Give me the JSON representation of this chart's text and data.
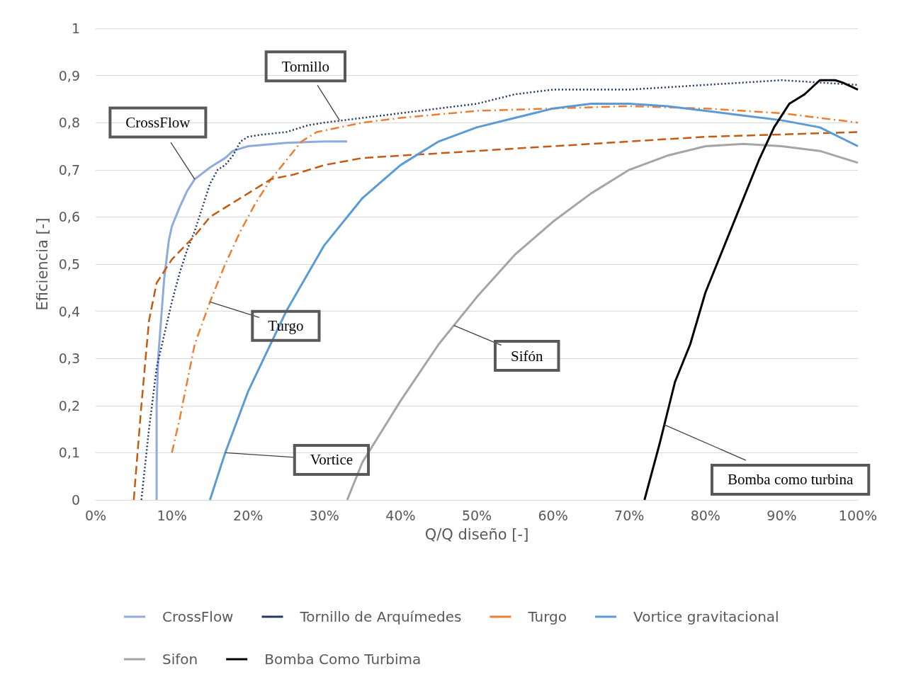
{
  "chart_data": {
    "type": "line",
    "xlabel": "Q/Q diseño [-]",
    "ylabel": "Eficiencia [-]",
    "xlim": [
      0,
      100
    ],
    "xticks": [
      {
        "value": 0,
        "label": "0%"
      },
      {
        "value": 10,
        "label": "10%"
      },
      {
        "value": 20,
        "label": "20%"
      },
      {
        "value": 30,
        "label": "30%"
      },
      {
        "value": 40,
        "label": "40%"
      },
      {
        "value": 50,
        "label": "50%"
      },
      {
        "value": 60,
        "label": "60%"
      },
      {
        "value": 70,
        "label": "70%"
      },
      {
        "value": 80,
        "label": "80%"
      },
      {
        "value": 90,
        "label": "90%"
      },
      {
        "value": 100,
        "label": "100%"
      }
    ],
    "ylim": [
      0,
      1
    ],
    "yticks": [
      0,
      {
        "value": 0.1,
        "label": "0,1"
      },
      {
        "value": 0.2,
        "label": "0,2"
      },
      {
        "value": 0.3,
        "label": "0,3"
      },
      {
        "value": 0.4,
        "label": "0,4"
      },
      {
        "value": 0.5,
        "label": "0,5"
      },
      {
        "value": 0.6,
        "label": "0,6"
      },
      {
        "value": 0.7,
        "label": "0,7"
      },
      {
        "value": 0.8,
        "label": "0,8"
      },
      {
        "value": 0.9,
        "label": "0,9"
      },
      1
    ],
    "grid": "y",
    "legend": "bottom",
    "marker": "none",
    "series": [
      {
        "name": "CrossFlow",
        "color": "#8faadc",
        "line_style": "solid",
        "x": [
          8,
          8,
          8.2,
          9,
          9.6,
          10,
          11,
          12,
          13,
          15,
          17,
          18,
          20,
          25,
          30,
          33
        ],
        "values": [
          0,
          0.2,
          0.3,
          0.47,
          0.55,
          0.58,
          0.62,
          0.655,
          0.68,
          0.705,
          0.725,
          0.74,
          0.75,
          0.757,
          0.76,
          0.76
        ]
      },
      {
        "name": "Tornillo de Arquímedes",
        "color": "#203864",
        "line_style": "dotted",
        "x": [
          6,
          7,
          8,
          9,
          10,
          11,
          12,
          13,
          14,
          15,
          16,
          17,
          18,
          19,
          20,
          22,
          25,
          28,
          30,
          35,
          40,
          45,
          50,
          55,
          60,
          65,
          70,
          75,
          80,
          85,
          90,
          95,
          100
        ],
        "values": [
          0,
          0.15,
          0.28,
          0.35,
          0.42,
          0.48,
          0.53,
          0.57,
          0.62,
          0.67,
          0.7,
          0.71,
          0.73,
          0.76,
          0.77,
          0.775,
          0.78,
          0.795,
          0.8,
          0.81,
          0.82,
          0.83,
          0.84,
          0.86,
          0.87,
          0.87,
          0.87,
          0.875,
          0.88,
          0.885,
          0.89,
          0.885,
          0.88
        ]
      },
      {
        "name": "Turgo",
        "color": "#ed7d31",
        "line_style": "dashdot",
        "x": [
          10,
          11,
          12,
          13,
          15,
          17,
          19,
          21,
          23,
          25,
          27,
          29,
          32,
          35,
          40,
          50,
          60,
          70,
          80,
          90,
          100
        ],
        "values": [
          0.1,
          0.17,
          0.25,
          0.33,
          0.42,
          0.5,
          0.57,
          0.63,
          0.68,
          0.72,
          0.76,
          0.78,
          0.79,
          0.8,
          0.81,
          0.825,
          0.83,
          0.835,
          0.83,
          0.82,
          0.8
        ]
      },
      {
        "color": "#c55a11",
        "line_style": "dashed",
        "x": [
          5,
          6,
          7,
          8,
          10,
          13,
          15,
          18,
          20,
          23,
          26,
          30,
          35,
          40,
          50,
          60,
          70,
          80,
          90,
          100
        ],
        "values": [
          0,
          0.2,
          0.38,
          0.46,
          0.51,
          0.56,
          0.6,
          0.63,
          0.65,
          0.68,
          0.69,
          0.71,
          0.725,
          0.73,
          0.74,
          0.75,
          0.76,
          0.77,
          0.775,
          0.78
        ]
      },
      {
        "name": "Vortice gravitacional",
        "color": "#5b9bd5",
        "line_style": "solid",
        "x": [
          15,
          17,
          20,
          25,
          30,
          35,
          40,
          45,
          50,
          55,
          60,
          65,
          70,
          75,
          80,
          85,
          90,
          95,
          100
        ],
        "values": [
          0,
          0.1,
          0.23,
          0.4,
          0.54,
          0.64,
          0.71,
          0.76,
          0.79,
          0.81,
          0.83,
          0.84,
          0.84,
          0.835,
          0.825,
          0.815,
          0.805,
          0.79,
          0.75
        ]
      },
      {
        "name": "Sifon",
        "color": "#a5a5a5",
        "line_style": "solid",
        "x": [
          33,
          35,
          40,
          45,
          50,
          55,
          60,
          65,
          70,
          75,
          80,
          85,
          90,
          95,
          100
        ],
        "values": [
          0,
          0.08,
          0.21,
          0.33,
          0.43,
          0.52,
          0.59,
          0.65,
          0.7,
          0.73,
          0.75,
          0.755,
          0.75,
          0.74,
          0.715
        ]
      },
      {
        "name": "Bomba Como Turbima",
        "color": "#000000",
        "line_style": "solid",
        "x": [
          72,
          74,
          76,
          78,
          80,
          84,
          87,
          89,
          91,
          93,
          95,
          97,
          98,
          100
        ],
        "values": [
          0,
          0.12,
          0.25,
          0.33,
          0.44,
          0.6,
          0.72,
          0.79,
          0.84,
          0.86,
          0.89,
          0.89,
          0.885,
          0.87
        ]
      }
    ],
    "annotations": [
      {
        "text": "Tornillo",
        "x": 32,
        "y": 0.805
      },
      {
        "text": "CrossFlow",
        "x": 13,
        "y": 0.68
      },
      {
        "text": "Turgo",
        "x": 15,
        "y": 0.42
      },
      {
        "text": "Sifón",
        "x": 47,
        "y": 0.37
      },
      {
        "text": "Vortice",
        "x": 17,
        "y": 0.1
      },
      {
        "text": "Bomba como turbina",
        "x": 74.5,
        "y": 0.16
      }
    ]
  }
}
